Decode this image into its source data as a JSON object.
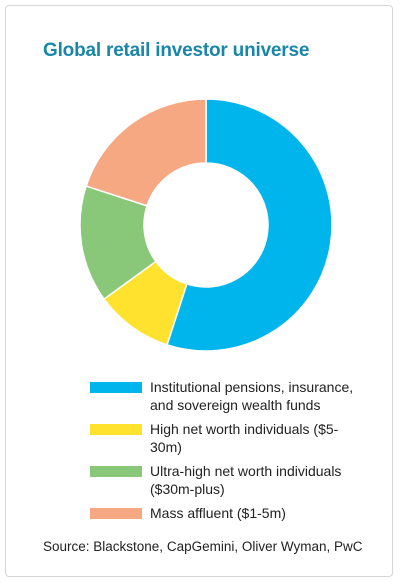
{
  "chart_data": {
    "type": "pie",
    "title": "Global retail investor universe",
    "series": [
      {
        "name": "Institutional pensions, insurance, and sovereign wealth funds",
        "value": 55,
        "color": "#00b4ec"
      },
      {
        "name": "High net worth individuals ($5-30m)",
        "value": 10,
        "color": "#ffe22e"
      },
      {
        "name": "Ultra-high net worth individuals ($30m-plus)",
        "value": 15,
        "color": "#88c878"
      },
      {
        "name": "Mass affluent ($1-5m)",
        "value": 20,
        "color": "#f6a882"
      }
    ],
    "legend_position": "bottom",
    "source": "Source: Blackstone, CapGemini, Oliver Wyman, PwC"
  }
}
